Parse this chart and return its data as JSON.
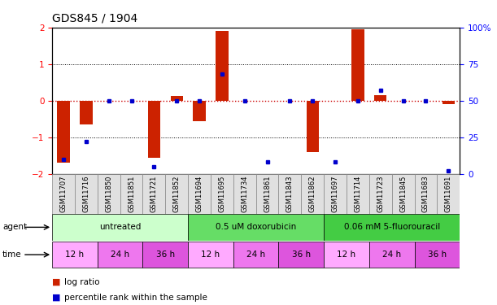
{
  "title": "GDS845 / 1904",
  "samples": [
    "GSM11707",
    "GSM11716",
    "GSM11850",
    "GSM11851",
    "GSM11721",
    "GSM11852",
    "GSM11694",
    "GSM11695",
    "GSM11734",
    "GSM11861",
    "GSM11843",
    "GSM11862",
    "GSM11697",
    "GSM11714",
    "GSM11723",
    "GSM11845",
    "GSM11683",
    "GSM11691"
  ],
  "log_ratio": [
    -1.7,
    -0.65,
    0.0,
    0.0,
    -1.55,
    0.12,
    -0.55,
    1.9,
    0.0,
    0.0,
    0.0,
    -1.4,
    0.0,
    1.95,
    0.15,
    0.0,
    0.0,
    -0.1
  ],
  "percentile": [
    10,
    22,
    50,
    50,
    5,
    50,
    50,
    68,
    50,
    8,
    50,
    50,
    8,
    50,
    57,
    50,
    50,
    2
  ],
  "ylim_left": [
    -2,
    2
  ],
  "ylim_right": [
    0,
    100
  ],
  "yticks_left": [
    -2,
    -1,
    0,
    1,
    2
  ],
  "yticks_right": [
    0,
    25,
    50,
    75,
    100
  ],
  "bar_color": "#cc2200",
  "dot_color": "#0000cc",
  "hline_color": "#cc0000",
  "agents": [
    {
      "label": "untreated",
      "start": 0,
      "end": 6,
      "color": "#ccffcc"
    },
    {
      "label": "0.5 uM doxorubicin",
      "start": 6,
      "end": 12,
      "color": "#66dd66"
    },
    {
      "label": "0.06 mM 5-fluorouracil",
      "start": 12,
      "end": 18,
      "color": "#44cc44"
    }
  ],
  "times": [
    {
      "label": "12 h",
      "start": 0,
      "end": 2,
      "color": "#ffaaff"
    },
    {
      "label": "24 h",
      "start": 2,
      "end": 4,
      "color": "#ee77ee"
    },
    {
      "label": "36 h",
      "start": 4,
      "end": 6,
      "color": "#dd55dd"
    },
    {
      "label": "12 h",
      "start": 6,
      "end": 8,
      "color": "#ffaaff"
    },
    {
      "label": "24 h",
      "start": 8,
      "end": 10,
      "color": "#ee77ee"
    },
    {
      "label": "36 h",
      "start": 10,
      "end": 12,
      "color": "#dd55dd"
    },
    {
      "label": "12 h",
      "start": 12,
      "end": 14,
      "color": "#ffaaff"
    },
    {
      "label": "24 h",
      "start": 14,
      "end": 16,
      "color": "#ee77ee"
    },
    {
      "label": "36 h",
      "start": 16,
      "end": 18,
      "color": "#dd55dd"
    }
  ],
  "legend_bar_color": "#cc2200",
  "legend_dot_color": "#0000cc",
  "background_color": "#ffffff"
}
